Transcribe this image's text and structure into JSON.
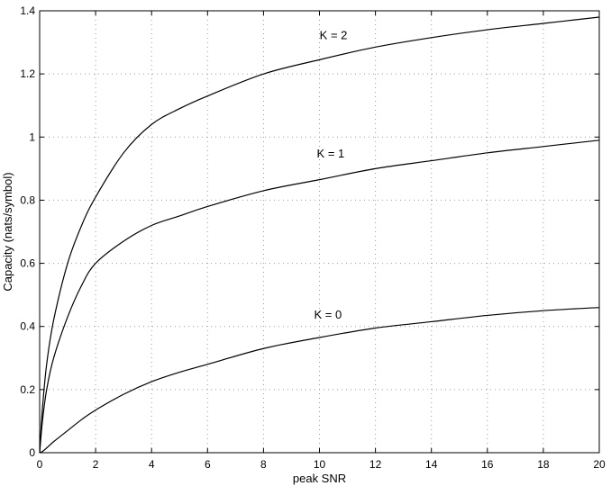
{
  "chart_data": {
    "type": "line",
    "title": "",
    "xlabel": "peak SNR",
    "ylabel": "Capacity (nats/symbol)",
    "xlim": [
      0,
      20
    ],
    "ylim": [
      0,
      1.4
    ],
    "xticks": [
      0,
      2,
      4,
      6,
      8,
      10,
      12,
      14,
      16,
      18,
      20
    ],
    "yticks": [
      0,
      0.2,
      0.4,
      0.6,
      0.8,
      1,
      1.2,
      1.4
    ],
    "xtick_labels": [
      "0",
      "2",
      "4",
      "6",
      "8",
      "10",
      "12",
      "14",
      "16",
      "18",
      "20"
    ],
    "ytick_labels": [
      "0",
      "0.2",
      "0.4",
      "0.6",
      "0.8",
      "1",
      "1.2",
      "1.4"
    ],
    "grid": true,
    "legend": "none",
    "x": [
      0,
      0.1,
      0.25,
      0.5,
      1,
      1.5,
      2,
      3,
      4,
      5,
      6,
      8,
      10,
      12,
      14,
      16,
      18,
      20
    ],
    "series": [
      {
        "label": "K = 2",
        "label_at": [
          10.5,
          1.31
        ],
        "values": [
          0,
          0.14,
          0.28,
          0.42,
          0.6,
          0.72,
          0.81,
          0.95,
          1.04,
          1.09,
          1.13,
          1.2,
          1.245,
          1.285,
          1.315,
          1.34,
          1.36,
          1.38
        ]
      },
      {
        "label": "K = 1",
        "label_at": [
          10.4,
          0.935
        ],
        "values": [
          0,
          0.1,
          0.2,
          0.3,
          0.43,
          0.53,
          0.6,
          0.67,
          0.72,
          0.75,
          0.78,
          0.83,
          0.865,
          0.9,
          0.925,
          0.95,
          0.97,
          0.99
        ]
      },
      {
        "label": "K = 0",
        "label_at": [
          10.3,
          0.425
        ],
        "values": [
          0,
          0.004,
          0.015,
          0.035,
          0.07,
          0.105,
          0.135,
          0.185,
          0.225,
          0.255,
          0.28,
          0.33,
          0.365,
          0.395,
          0.415,
          0.435,
          0.45,
          0.46
        ]
      }
    ]
  }
}
